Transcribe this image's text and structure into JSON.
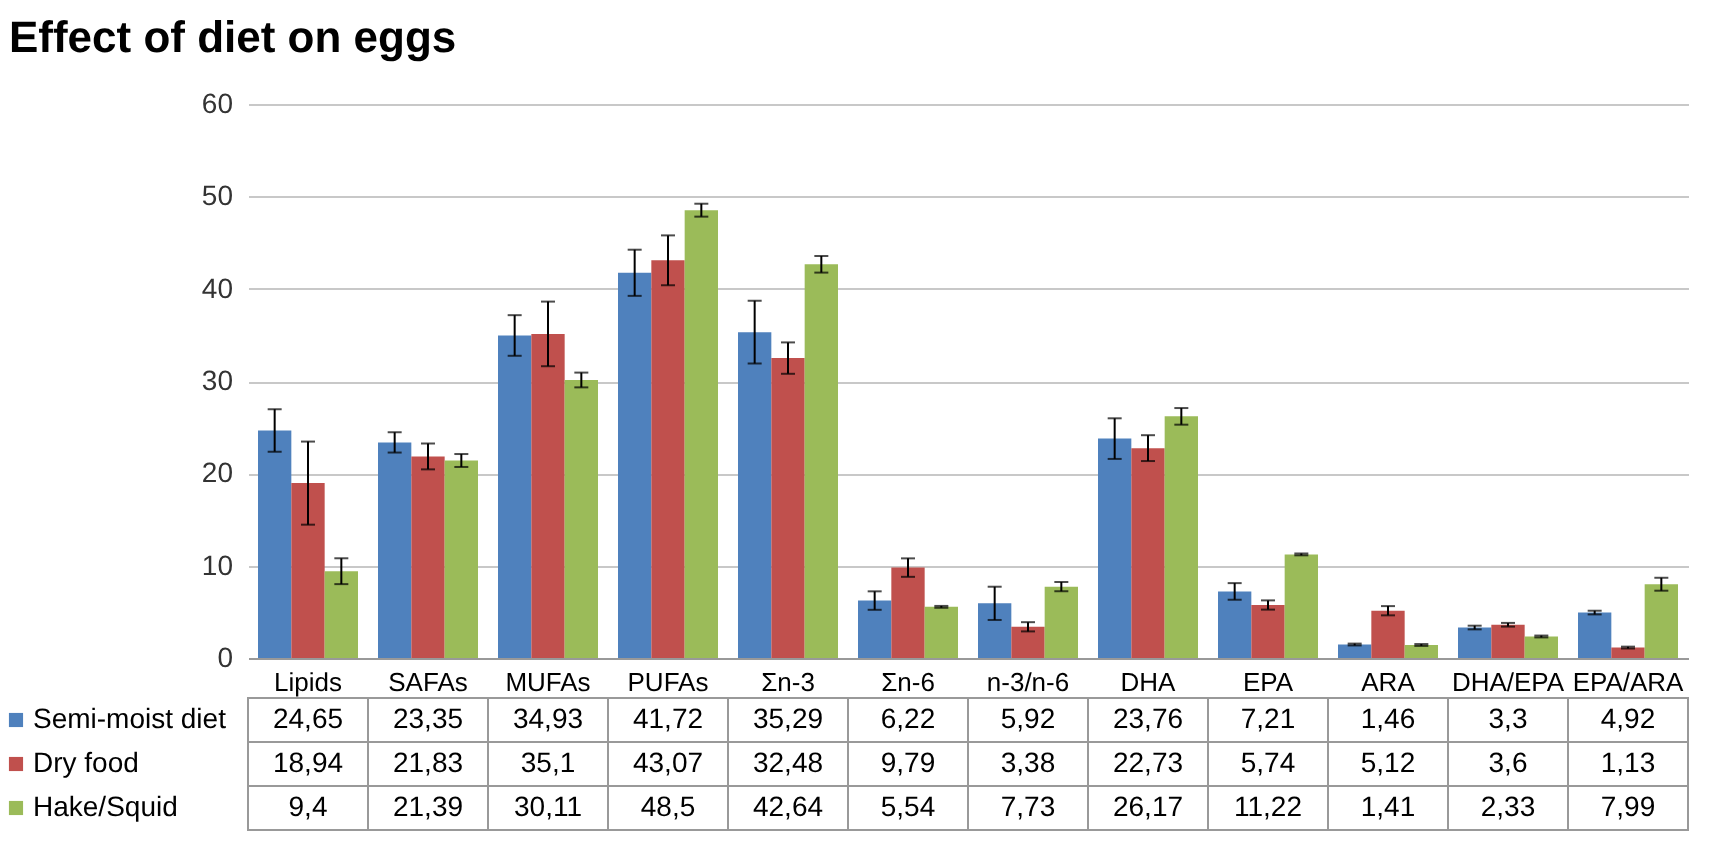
{
  "chart_data": {
    "type": "bar",
    "title": "Effect of diet on eggs",
    "categories": [
      "Lipids",
      "SAFAs",
      "MUFAs",
      "PUFAs",
      "Σn-3",
      "Σn-6",
      "n-3/n-6",
      "DHA",
      "EPA",
      "ARA",
      "DHA/EPA",
      "EPA/ARA"
    ],
    "series": [
      {
        "name": "Semi-moist diet",
        "color": "#4f81bd",
        "values": [
          24.65,
          23.35,
          34.93,
          41.72,
          35.29,
          6.22,
          5.92,
          23.76,
          7.21,
          1.46,
          3.3,
          4.92
        ],
        "errors": [
          2.3,
          1.1,
          2.2,
          2.5,
          3.4,
          1.0,
          1.8,
          2.2,
          0.9,
          0.1,
          0.2,
          0.2
        ],
        "value_labels": [
          "24,65",
          "23,35",
          "34,93",
          "41,72",
          "35,29",
          "6,22",
          "5,92",
          "23,76",
          "7,21",
          "1,46",
          "3,3",
          "4,92"
        ]
      },
      {
        "name": "Dry food",
        "color": "#c0504d",
        "values": [
          18.94,
          21.83,
          35.1,
          43.07,
          32.48,
          9.79,
          3.38,
          22.73,
          5.74,
          5.12,
          3.6,
          1.13
        ],
        "errors": [
          4.5,
          1.4,
          3.5,
          2.7,
          1.7,
          1.0,
          0.5,
          1.4,
          0.5,
          0.5,
          0.2,
          0.1
        ],
        "value_labels": [
          "18,94",
          "21,83",
          "35,1",
          "43,07",
          "32,48",
          "9,79",
          "3,38",
          "22,73",
          "5,74",
          "5,12",
          "3,6",
          "1,13"
        ]
      },
      {
        "name": "Hake/Squid",
        "color": "#9bbb59",
        "values": [
          9.4,
          21.39,
          30.11,
          48.5,
          42.64,
          5.54,
          7.73,
          26.17,
          11.22,
          1.41,
          2.33,
          7.99
        ],
        "errors": [
          1.4,
          0.7,
          0.8,
          0.7,
          0.9,
          0.1,
          0.5,
          0.9,
          0.1,
          0.1,
          0.1,
          0.7
        ],
        "value_labels": [
          "9,4",
          "21,39",
          "30,11",
          "48,5",
          "42,64",
          "5,54",
          "7,73",
          "26,17",
          "11,22",
          "1,41",
          "2,33",
          "7,99"
        ]
      }
    ],
    "ylim": [
      0,
      60
    ],
    "yticks": [
      0,
      10,
      20,
      30,
      40,
      50,
      60
    ],
    "grid": "y",
    "legend": "bottom"
  }
}
